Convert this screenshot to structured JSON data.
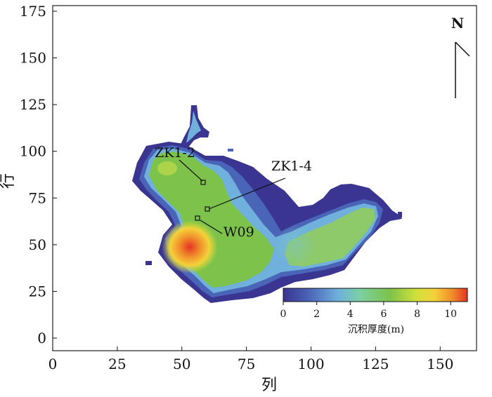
{
  "map": {
    "x_axis": {
      "title": "列",
      "ticks": [
        "0",
        "25",
        "50",
        "75",
        "100",
        "125",
        "150"
      ]
    },
    "y_axis": {
      "title": "行",
      "ticks": [
        "0",
        "25",
        "50",
        "75",
        "100",
        "125",
        "150",
        "175"
      ]
    },
    "north_arrow": {
      "label": "N"
    },
    "wells": [
      {
        "name": "ZK1-2",
        "col": 58,
        "row": 83
      },
      {
        "name": "ZK1-4",
        "col": 59,
        "row": 69
      },
      {
        "name": "W09",
        "col": 56,
        "row": 64
      }
    ],
    "colorbar": {
      "title": "沉积厚度(m)",
      "ticks": [
        "0",
        "2",
        "4",
        "6",
        "8",
        "10"
      ],
      "range": [
        0,
        11
      ],
      "colors": [
        "#3a3591",
        "#4a64b8",
        "#6fb1dc",
        "#7cd0a0",
        "#7dc24a",
        "#cfe03a",
        "#f4d23a",
        "#f08a2a",
        "#e53424"
      ]
    }
  }
}
